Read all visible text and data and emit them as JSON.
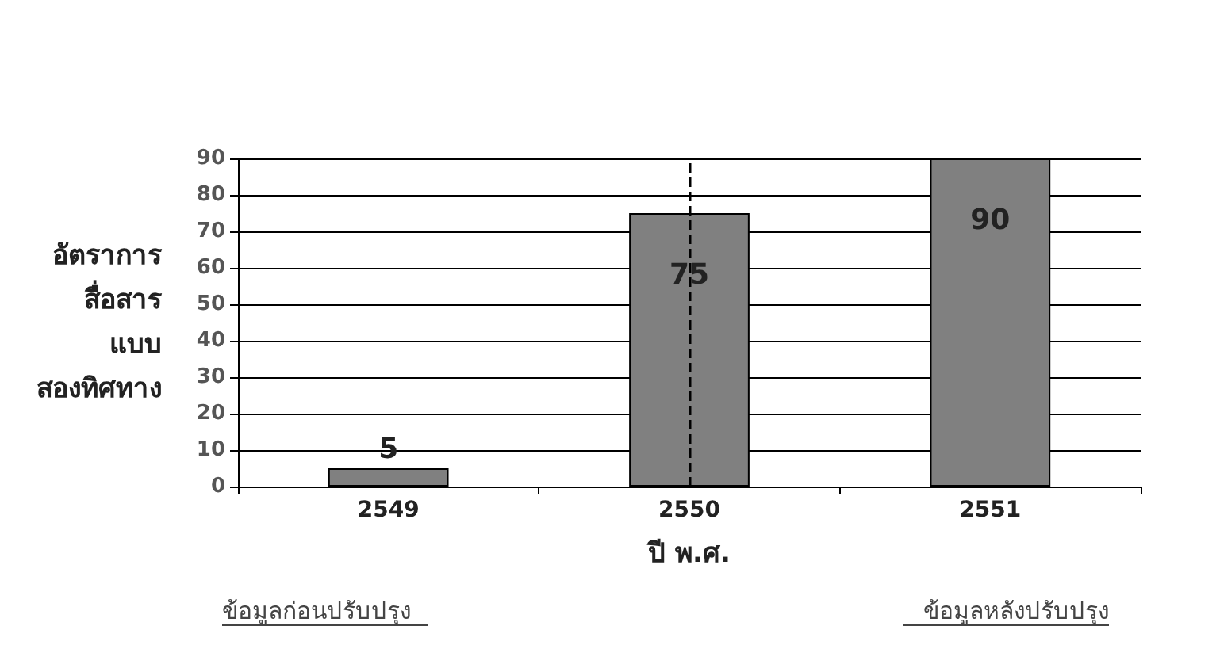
{
  "chart_data": {
    "type": "bar",
    "ylabel": "อัตราการ\nสื่อสาร\nแบบ\nสองทิศทาง",
    "xlabel": "ปี พ.ศ.",
    "categories": [
      "2549",
      "2550",
      "2551"
    ],
    "values": [
      5,
      75,
      90
    ],
    "color": "#808080",
    "data_labels": true,
    "ylim": [
      0,
      90
    ],
    "yticks": [
      0,
      10,
      20,
      30,
      40,
      50,
      60,
      70,
      80,
      90
    ],
    "grid": "y",
    "ref_lines": [
      {
        "axis": "x",
        "value": "2550",
        "line_style": "dashed",
        "color": "#000000"
      }
    ],
    "annotations": [
      "ข้อมูลก่อนปรับปรุง",
      "ข้อมูลหลังปรับปรุง"
    ]
  }
}
